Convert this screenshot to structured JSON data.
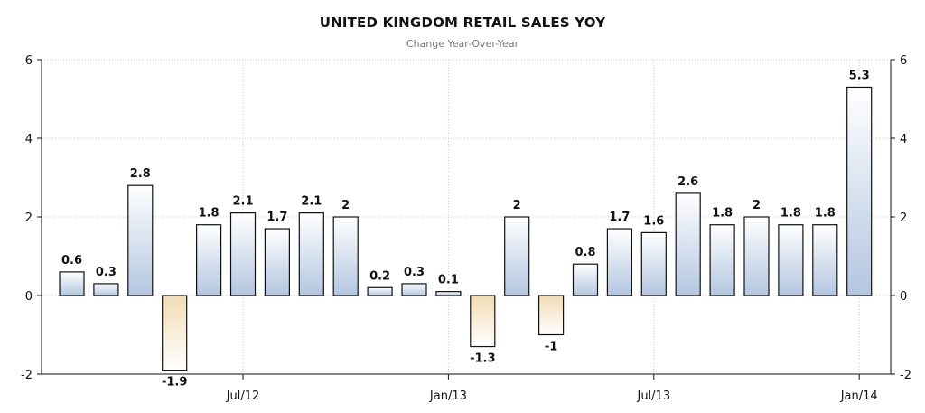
{
  "chart_data": {
    "type": "bar",
    "title": "UNITED KINGDOM RETAIL SALES YOY",
    "subtitle": "Change Year-Over-Year",
    "values": [
      0.6,
      0.3,
      2.8,
      -1.9,
      1.8,
      2.1,
      1.7,
      2.1,
      2,
      0.2,
      0.3,
      0.1,
      -1.3,
      2,
      -1,
      0.8,
      1.7,
      1.6,
      2.6,
      1.8,
      2,
      1.8,
      1.8,
      5.3
    ],
    "data_labels": [
      "0.6",
      "0.3",
      "2.8",
      "-1.9",
      "1.8",
      "2.1",
      "1.7",
      "2.1",
      "2",
      "0.2",
      "0.3",
      "0.1",
      "-1.3",
      "2",
      "-1",
      "0.8",
      "1.7",
      "1.6",
      "2.6",
      "1.8",
      "2",
      "1.8",
      "1.8",
      "5.3"
    ],
    "x_ticks": [
      {
        "label": "Jul/12",
        "index": 5
      },
      {
        "label": "Jan/13",
        "index": 11
      },
      {
        "label": "Jul/13",
        "index": 17
      },
      {
        "label": "Jan/14",
        "index": 23
      }
    ],
    "ylim": [
      -2,
      6
    ],
    "y_ticks": [
      "6",
      "4",
      "2",
      "0",
      "-2"
    ],
    "grid": true,
    "colors": {
      "positive_top": "#ffffff",
      "positive_bottom": "#b3c6e0",
      "negative_top": "#f1dcb5",
      "negative_bottom": "#ffffff",
      "bar_stroke": "#111111",
      "grid": "#c8c8c8"
    }
  }
}
